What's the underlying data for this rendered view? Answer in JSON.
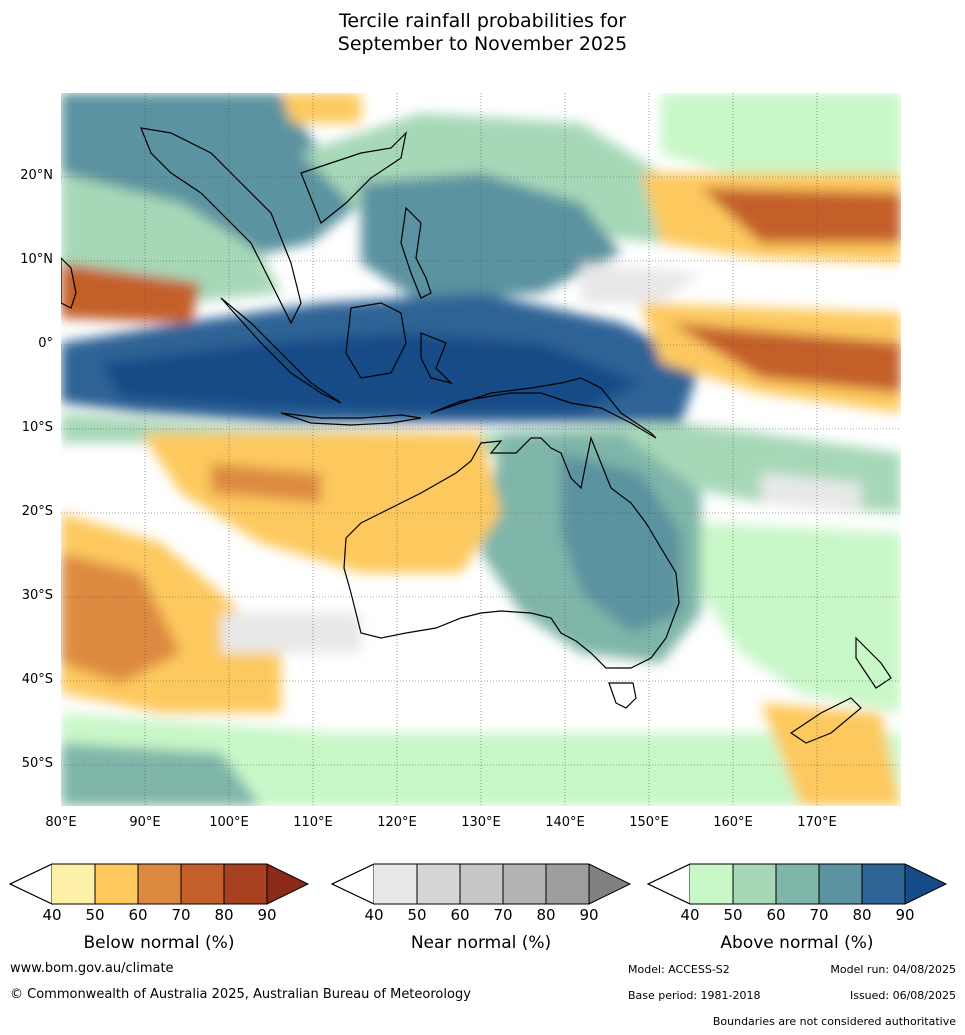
{
  "title_line1": "Tercile rainfall probabilities for",
  "title_line2": "September to November 2025",
  "lat_labels": [
    "20°N",
    "10°N",
    "0°",
    "10°S",
    "20°S",
    "30°S",
    "40°S",
    "50°S"
  ],
  "lon_labels": [
    "80°E",
    "90°E",
    "100°E",
    "110°E",
    "120°E",
    "130°E",
    "140°E",
    "150°E",
    "160°E",
    "170°E"
  ],
  "legends": [
    {
      "title": "Below normal (%)",
      "colors": [
        "#fff0a8",
        "#fdc95f",
        "#dd8a40",
        "#c45e2a",
        "#a9401f",
        "#8c2a1a"
      ],
      "ticks": [
        "40",
        "50",
        "60",
        "70",
        "80",
        "90"
      ]
    },
    {
      "title": "Near normal (%)",
      "colors": [
        "#e8e8e8",
        "#d6d6d6",
        "#c6c6c6",
        "#b3b3b3",
        "#9e9e9e",
        "#808080"
      ],
      "ticks": [
        "40",
        "50",
        "60",
        "70",
        "80",
        "90"
      ]
    },
    {
      "title": "Above normal (%)",
      "colors": [
        "#c8f7c8",
        "#a6d8b8",
        "#7fb6a9",
        "#5b93a0",
        "#2f6496",
        "#154c88"
      ],
      "ticks": [
        "40",
        "50",
        "60",
        "70",
        "80",
        "90"
      ]
    }
  ],
  "footer": {
    "website": "www.bom.gov.au/climate",
    "copyright": "© Commonwealth of Australia 2025, Australian Bureau of Meteorology",
    "model": "Model: ACCESS-S2",
    "model_run": "Model run: 04/08/2025",
    "base_period": "Base period: 1981-2018",
    "issued": "Issued: 06/08/2025",
    "boundaries": "Boundaries are not considered authoritative"
  },
  "colors": {
    "ocean_base": "#ffffff",
    "coast": "#000000",
    "grid": "#555555"
  }
}
